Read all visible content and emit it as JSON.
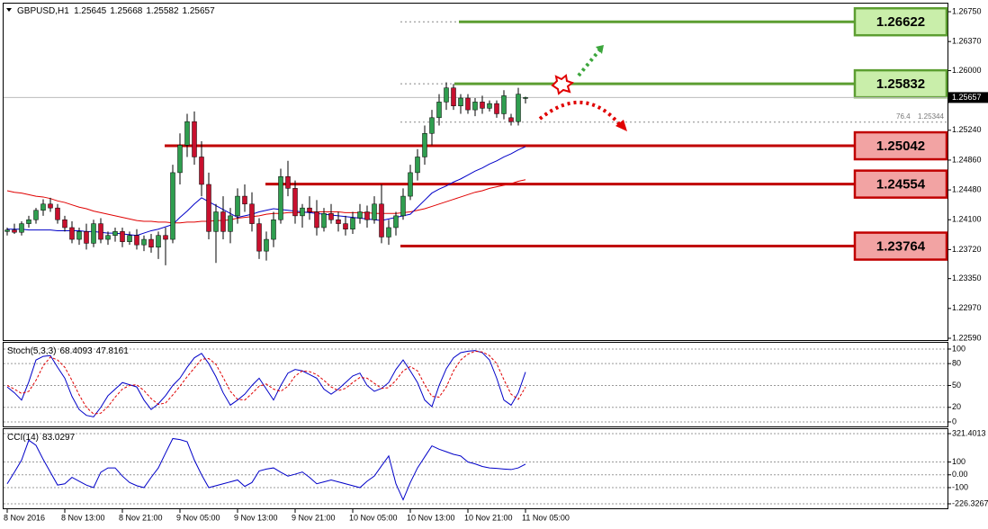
{
  "chart_data": [
    {
      "type": "candlestick",
      "title": "GBPUSD,H1",
      "categories": [
        "8 Nov 2016",
        null,
        null,
        null,
        null,
        null,
        null,
        null,
        "8 Nov 13:00",
        null,
        null,
        null,
        null,
        null,
        null,
        null,
        "8 Nov 21:00",
        null,
        null,
        null,
        null,
        null,
        null,
        null,
        "9 Nov 05:00",
        null,
        null,
        null,
        null,
        null,
        null,
        null,
        "9 Nov 13:00",
        null,
        null,
        null,
        null,
        null,
        null,
        null,
        "9 Nov 21:00",
        null,
        null,
        null,
        null,
        null,
        null,
        null,
        "10 Nov 05:00",
        null,
        null,
        null,
        null,
        null,
        null,
        null,
        "10 Nov 13:00",
        null,
        null,
        null,
        null,
        null,
        null,
        null,
        "10 Nov 21:00",
        null,
        null,
        null,
        null,
        null,
        null,
        null,
        "11 Nov 05:00"
      ],
      "open": [
        1.2395,
        1.2397,
        1.2394,
        1.2405,
        1.241,
        1.2422,
        1.243,
        1.2425,
        1.241,
        1.24,
        1.2385,
        1.2395,
        1.238,
        1.2405,
        1.2385,
        1.239,
        1.2395,
        1.2382,
        1.239,
        1.2378,
        1.2385,
        1.2375,
        1.239,
        1.2385,
        1.247,
        1.2505,
        1.2535,
        1.249,
        1.2455,
        1.2395,
        1.242,
        1.2395,
        1.2415,
        1.244,
        1.243,
        1.2405,
        1.237,
        1.2385,
        1.241,
        1.2465,
        1.245,
        1.2415,
        1.2425,
        1.242,
        1.24,
        1.2418,
        1.241,
        1.2405,
        1.2398,
        1.2412,
        1.242,
        1.241,
        1.243,
        1.2388,
        1.24,
        1.2415,
        1.244,
        1.247,
        1.249,
        1.252,
        1.254,
        1.256,
        1.2578,
        1.2555,
        1.2565,
        1.255,
        1.256,
        1.2552,
        1.2558,
        1.2545,
        1.254,
        1.2535,
        1.25645
      ],
      "high": [
        1.24,
        1.2405,
        1.2408,
        1.2415,
        1.2425,
        1.2436,
        1.2438,
        1.243,
        1.2415,
        1.2408,
        1.24,
        1.2405,
        1.241,
        1.2412,
        1.2395,
        1.24,
        1.24,
        1.2395,
        1.2398,
        1.239,
        1.2392,
        1.2395,
        1.24,
        1.248,
        1.252,
        1.2545,
        1.2548,
        1.251,
        1.247,
        1.243,
        1.244,
        1.2425,
        1.245,
        1.2455,
        1.2445,
        1.2412,
        1.2395,
        1.242,
        1.2475,
        1.2485,
        1.246,
        1.243,
        1.244,
        1.2435,
        1.2425,
        1.243,
        1.242,
        1.2415,
        1.242,
        1.243,
        1.2428,
        1.244,
        1.2455,
        1.241,
        1.242,
        1.245,
        1.248,
        1.25,
        1.253,
        1.255,
        1.257,
        1.2585,
        1.2583,
        1.257,
        1.257,
        1.2565,
        1.2568,
        1.2562,
        1.2562,
        1.2575,
        1.2545,
        1.2578,
        1.25668
      ],
      "low": [
        1.239,
        1.2392,
        1.239,
        1.24,
        1.2405,
        1.2415,
        1.242,
        1.2405,
        1.2395,
        1.238,
        1.2378,
        1.2372,
        1.2375,
        1.238,
        1.2378,
        1.2382,
        1.2375,
        1.2378,
        1.2372,
        1.237,
        1.2368,
        1.236,
        1.2352,
        1.238,
        1.2455,
        1.249,
        1.248,
        1.244,
        1.2385,
        1.2355,
        1.2385,
        1.238,
        1.2405,
        1.242,
        1.2395,
        1.236,
        1.2358,
        1.2375,
        1.2405,
        1.244,
        1.2405,
        1.24,
        1.241,
        1.239,
        1.2395,
        1.2405,
        1.2395,
        1.239,
        1.2392,
        1.2405,
        1.24,
        1.2405,
        1.238,
        1.2378,
        1.239,
        1.241,
        1.2435,
        1.246,
        1.248,
        1.2505,
        1.253,
        1.255,
        1.255,
        1.2545,
        1.2545,
        1.2542,
        1.2545,
        1.2548,
        1.254,
        1.2538,
        1.253,
        1.253,
        1.25582
      ],
      "close": [
        1.2397,
        1.2394,
        1.2405,
        1.241,
        1.2422,
        1.243,
        1.2425,
        1.241,
        1.24,
        1.2385,
        1.2395,
        1.238,
        1.2405,
        1.2385,
        1.239,
        1.2395,
        1.2382,
        1.239,
        1.2378,
        1.2385,
        1.2375,
        1.239,
        1.2385,
        1.247,
        1.2505,
        1.2535,
        1.249,
        1.2455,
        1.2395,
        1.242,
        1.2395,
        1.2415,
        1.244,
        1.243,
        1.2405,
        1.237,
        1.2385,
        1.241,
        1.2465,
        1.245,
        1.2415,
        1.2425,
        1.242,
        1.24,
        1.2418,
        1.241,
        1.2405,
        1.2398,
        1.2412,
        1.242,
        1.241,
        1.243,
        1.2388,
        1.24,
        1.2415,
        1.244,
        1.247,
        1.249,
        1.252,
        1.254,
        1.256,
        1.2578,
        1.2555,
        1.2565,
        1.255,
        1.256,
        1.2552,
        1.2558,
        1.2545,
        1.2568,
        1.2535,
        1.257,
        1.25657
      ],
      "up_color": "#2f9e4f",
      "down_color": "#c8102e",
      "wick_color": "#000000",
      "lines": [
        {
          "color": "#e00000",
          "values": [
            1.2447,
            1.2445,
            1.2444,
            1.2442,
            1.244,
            1.2439,
            1.2437,
            1.2434,
            1.2432,
            1.2429,
            1.2426,
            1.2424,
            1.2421,
            1.2419,
            1.2417,
            1.2415,
            1.2413,
            1.2411,
            1.2409,
            1.2408,
            1.2408,
            1.2407,
            1.2407,
            1.2406,
            1.2406,
            1.2407,
            1.2407,
            1.2408,
            1.2408,
            1.2409,
            1.2409,
            1.241,
            1.2412,
            1.2413,
            1.2414,
            1.2415,
            1.2417,
            1.2418,
            1.2418,
            1.2419,
            1.2419,
            1.2419,
            1.242,
            1.242,
            1.242,
            1.242,
            1.242,
            1.2419,
            1.2419,
            1.2419,
            1.2419,
            1.2418,
            1.2418,
            1.2418,
            1.2418,
            1.2419,
            1.242,
            1.2422,
            1.2424,
            1.2427,
            1.243,
            1.2433,
            1.2436,
            1.2439,
            1.2442,
            1.2445,
            1.2447,
            1.245,
            1.2452,
            1.2454,
            1.2456,
            1.2459,
            1.2461
          ]
        },
        {
          "color": "#0000c8",
          "values": [
            1.2398,
            1.2398,
            1.2398,
            1.2397,
            1.2397,
            1.2397,
            1.2397,
            1.2396,
            1.2396,
            1.2396,
            1.2396,
            1.2395,
            1.2395,
            1.2394,
            1.2393,
            1.2393,
            1.2392,
            1.2391,
            1.239,
            1.2393,
            1.2396,
            1.2398,
            1.2401,
            1.2404,
            1.2413,
            1.2421,
            1.243,
            1.2438,
            1.2433,
            1.2428,
            1.2423,
            1.2418,
            1.2413,
            1.2415,
            1.2417,
            1.242,
            1.2422,
            1.2424,
            1.2423,
            1.2422,
            1.2421,
            1.242,
            1.2419,
            1.2418,
            1.2417,
            1.2416,
            1.2415,
            1.2414,
            1.2413,
            1.2412,
            1.2411,
            1.241,
            1.2409,
            1.2411,
            1.2413,
            1.2415,
            1.2417,
            1.2426,
            1.2435,
            1.2444,
            1.2449,
            1.2453,
            1.2458,
            1.2462,
            1.2467,
            1.2472,
            1.2476,
            1.2481,
            1.2485,
            1.249,
            1.2494,
            1.2499,
            1.2503
          ]
        }
      ],
      "levels": [
        {
          "value": 1.26622,
          "color": "#5c9e31",
          "fill": "#c9eeaa"
        },
        {
          "value": 1.25832,
          "color": "#5c9e31",
          "fill": "#c9eeaa"
        },
        {
          "value": 1.25042,
          "color": "#c00000",
          "fill": "#f2a3a3"
        },
        {
          "value": 1.24554,
          "color": "#c00000",
          "fill": "#f2a3a3"
        },
        {
          "value": 1.23764,
          "color": "#c00000",
          "fill": "#f2a3a3"
        }
      ],
      "fib": {
        "label": "76.4",
        "value": 1.25344
      },
      "ylim": [
        1.22567,
        1.26865
      ],
      "yticks": [
        {
          "value": 1.2259,
          "label": "1.22590"
        },
        {
          "value": 1.2297,
          "label": "1.22970"
        },
        {
          "value": 1.2335,
          "label": "1.23350"
        },
        {
          "value": 1.2372,
          "label": "1.23720"
        },
        {
          "value": 1.241,
          "label": "1.24100"
        },
        {
          "value": 1.2448,
          "label": "1.24480"
        },
        {
          "value": 1.2486,
          "label": "1.24860"
        },
        {
          "value": 1.2524,
          "label": "1.25240"
        },
        {
          "value": 1.26,
          "label": "1.26000"
        },
        {
          "value": 1.2637,
          "label": "1.26370"
        },
        {
          "value": 1.2675,
          "label": "1.26750"
        }
      ]
    },
    {
      "type": "line",
      "title": "Stoch(5,3,3)",
      "series": [
        {
          "color": "#0000c8",
          "dash": false,
          "values": [
            48,
            40,
            30,
            55,
            85,
            90,
            91,
            75,
            60,
            35,
            17,
            9,
            7,
            20,
            36,
            45,
            54,
            51,
            48,
            30,
            17,
            25,
            36,
            50,
            60,
            75,
            88,
            94,
            80,
            62,
            40,
            23,
            30,
            38,
            50,
            60,
            45,
            30,
            50,
            67,
            72,
            70,
            65,
            60,
            45,
            38,
            45,
            54,
            63,
            67,
            50,
            42,
            46,
            54,
            72,
            85,
            70,
            54,
            30,
            21,
            50,
            73,
            88,
            95,
            97,
            98,
            95,
            85,
            60,
            30,
            23,
            40,
            68.4093
          ]
        },
        {
          "color": "#e00000",
          "dash": true,
          "values": [
            50,
            45,
            39,
            42,
            57,
            77,
            89,
            85,
            75,
            57,
            37,
            20,
            11,
            12,
            21,
            34,
            45,
            50,
            51,
            43,
            32,
            24,
            26,
            37,
            49,
            62,
            74,
            86,
            87,
            79,
            61,
            42,
            31,
            30,
            39,
            49,
            52,
            45,
            42,
            49,
            63,
            70,
            69,
            65,
            57,
            48,
            43,
            46,
            54,
            61,
            60,
            53,
            46,
            47,
            57,
            70,
            76,
            70,
            51,
            35,
            34,
            48,
            70,
            85,
            93,
            97,
            96,
            91,
            80,
            58,
            38,
            31,
            47.8161
          ]
        }
      ],
      "ylim": [
        -6.2,
        108.6
      ],
      "yticks": [
        0,
        20,
        50,
        80,
        100
      ]
    },
    {
      "type": "line",
      "title": "CCI(14)",
      "series": [
        {
          "color": "#0000c8",
          "dash": false,
          "values": [
            -70,
            20,
            115,
            270,
            230,
            120,
            20,
            -80,
            -70,
            -20,
            -50,
            -80,
            -100,
            20,
            54,
            54,
            -10,
            -60,
            -85,
            -100,
            -20,
            54,
            170,
            283,
            275,
            258,
            115,
            0,
            -100,
            -85,
            -70,
            -55,
            -40,
            -90,
            -60,
            30,
            45,
            54,
            20,
            -10,
            5,
            22,
            -20,
            -70,
            -55,
            -40,
            -55,
            -70,
            -85,
            -100,
            -50,
            -10,
            70,
            147,
            -70,
            -195,
            -60,
            54,
            140,
            226,
            200,
            180,
            160,
            147,
            100,
            85,
            65,
            54,
            50,
            45,
            41,
            54,
            83.0297
          ]
        }
      ],
      "ylim": [
        -226.3267,
        321.4013
      ],
      "yticks": [
        -226.3267,
        -100,
        {
          "value": 0,
          "label": "0.00"
        },
        100,
        321.4013
      ]
    }
  ]
}
